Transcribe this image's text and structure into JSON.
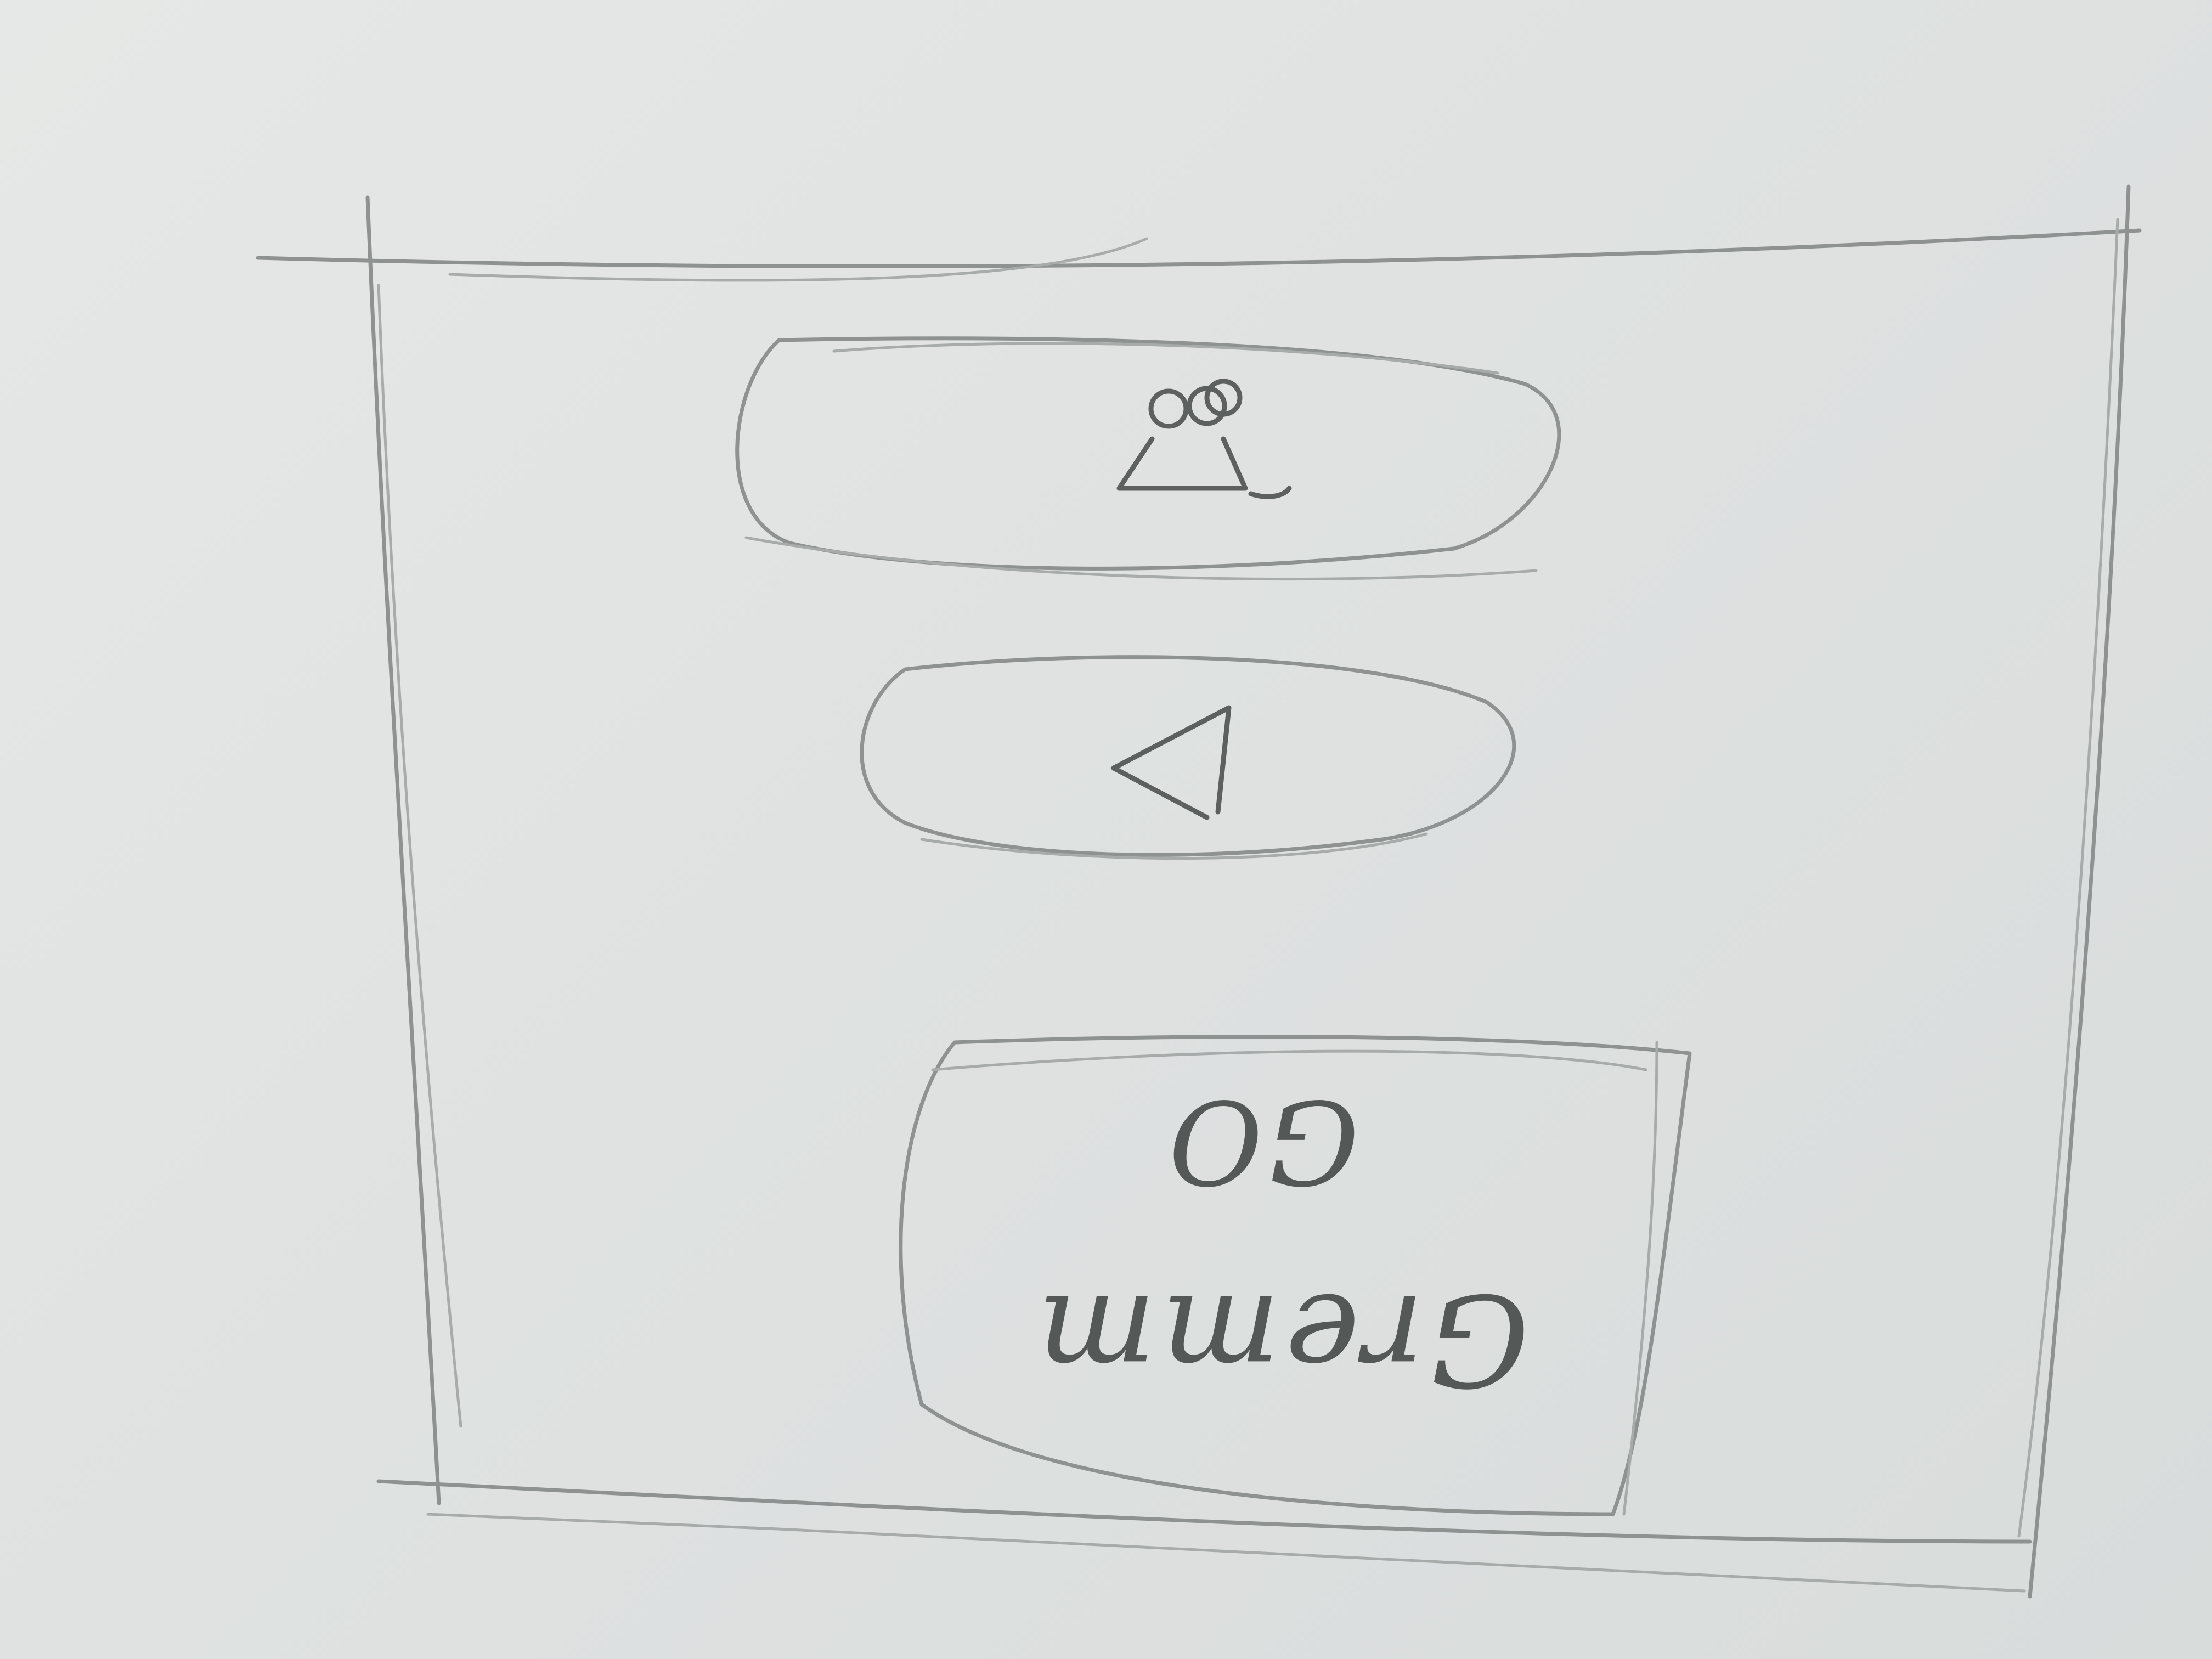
{
  "wireframe": {
    "buttons": [
      {
        "kind": "pill",
        "icon": "user-group-icon"
      },
      {
        "kind": "pill",
        "icon": "play-reverse-icon"
      }
    ],
    "text_button": {
      "line1": "GO",
      "line2": "Gremm"
    }
  },
  "colors": {
    "paper": "#dfe2e1",
    "pencil": "#8e9291",
    "pencil_dark": "#5c605f"
  }
}
